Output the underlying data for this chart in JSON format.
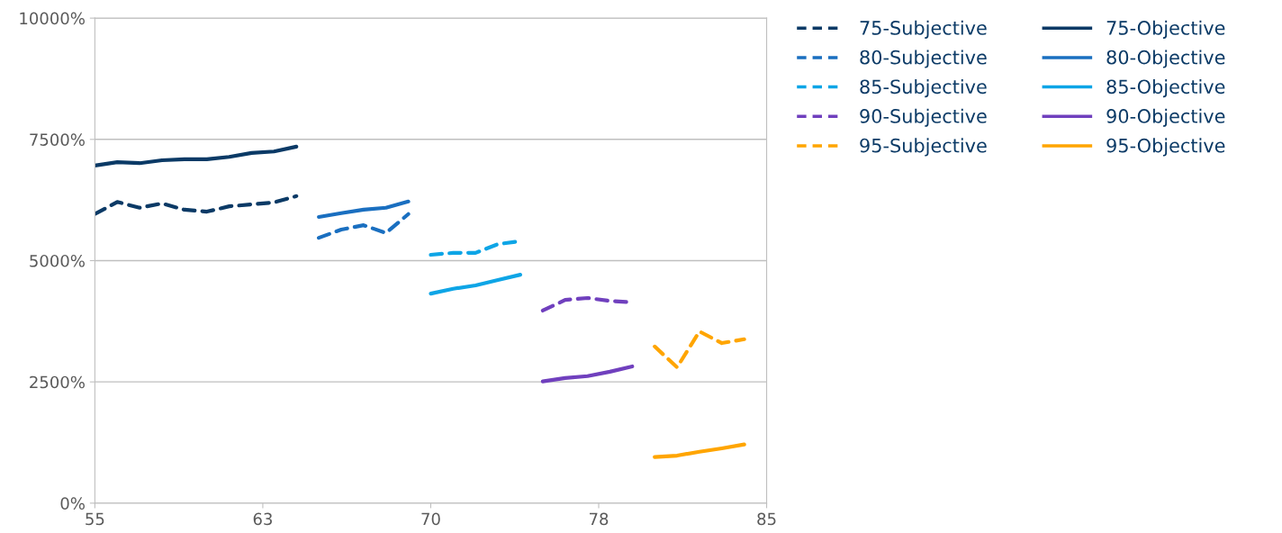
{
  "chart_data": {
    "type": "line",
    "xlim": [
      55,
      85
    ],
    "xticks": [
      55,
      {
        "value": 62.5,
        "label": "63"
      },
      70,
      {
        "value": 77.5,
        "label": "78"
      },
      85
    ],
    "ylim": [
      0,
      10000
    ],
    "yticks": [
      {
        "value": 0,
        "label": "0%"
      },
      {
        "value": 2500,
        "label": "2500%"
      },
      {
        "value": 5000,
        "label": "5000%"
      },
      {
        "value": 7500,
        "label": "7500%"
      },
      {
        "value": 10000,
        "label": "10000%"
      }
    ],
    "grid": "y",
    "legend": "right",
    "marker": "none",
    "series": [
      {
        "name": "75-Subjective",
        "color": "#0b3a66",
        "line_style": "dashed",
        "x": [
          55,
          56,
          57,
          58,
          59,
          60,
          61,
          62,
          63,
          64
        ],
        "values": [
          5960,
          6210,
          6090,
          6180,
          6050,
          6010,
          6120,
          6160,
          6200,
          6330
        ]
      },
      {
        "name": "80-Subjective",
        "color": "#1a6fc0",
        "line_style": "dashed",
        "x": [
          65,
          66,
          67,
          68,
          69
        ],
        "values": [
          5470,
          5640,
          5730,
          5570,
          5960
        ]
      },
      {
        "name": "85-Subjective",
        "color": "#0ea5e6",
        "line_style": "dashed",
        "x": [
          70,
          71,
          72,
          73,
          74
        ],
        "values": [
          5120,
          5160,
          5160,
          5340,
          5400
        ]
      },
      {
        "name": "90-Subjective",
        "color": "#7040be",
        "line_style": "dashed",
        "x": [
          75,
          76,
          77,
          78,
          79
        ],
        "values": [
          3970,
          4190,
          4230,
          4170,
          4140
        ]
      },
      {
        "name": "95-Subjective",
        "color": "#ffa500",
        "line_style": "dashed",
        "x": [
          80,
          81,
          82,
          83,
          84
        ],
        "values": [
          3230,
          2800,
          3540,
          3300,
          3380
        ]
      },
      {
        "name": "75-Objective",
        "color": "#0b3a66",
        "line_style": "solid",
        "x": [
          55,
          56,
          57,
          58,
          59,
          60,
          61,
          62,
          63,
          64
        ],
        "values": [
          6960,
          7030,
          7010,
          7070,
          7090,
          7090,
          7140,
          7220,
          7250,
          7350
        ]
      },
      {
        "name": "80-Objective",
        "color": "#1a6fc0",
        "line_style": "solid",
        "x": [
          65,
          66,
          67,
          68,
          69
        ],
        "values": [
          5900,
          5980,
          6050,
          6090,
          6220
        ]
      },
      {
        "name": "85-Objective",
        "color": "#0ea5e6",
        "line_style": "solid",
        "x": [
          70,
          71,
          72,
          73,
          74
        ],
        "values": [
          4320,
          4420,
          4490,
          4600,
          4710
        ]
      },
      {
        "name": "90-Objective",
        "color": "#7040be",
        "line_style": "solid",
        "x": [
          75,
          76,
          77,
          78,
          79
        ],
        "values": [
          2510,
          2580,
          2620,
          2710,
          2820
        ]
      },
      {
        "name": "95-Objective",
        "color": "#ffa500",
        "line_style": "solid",
        "x": [
          80,
          81,
          82,
          83,
          84
        ],
        "values": [
          950,
          980,
          1060,
          1130,
          1210
        ]
      }
    ]
  }
}
